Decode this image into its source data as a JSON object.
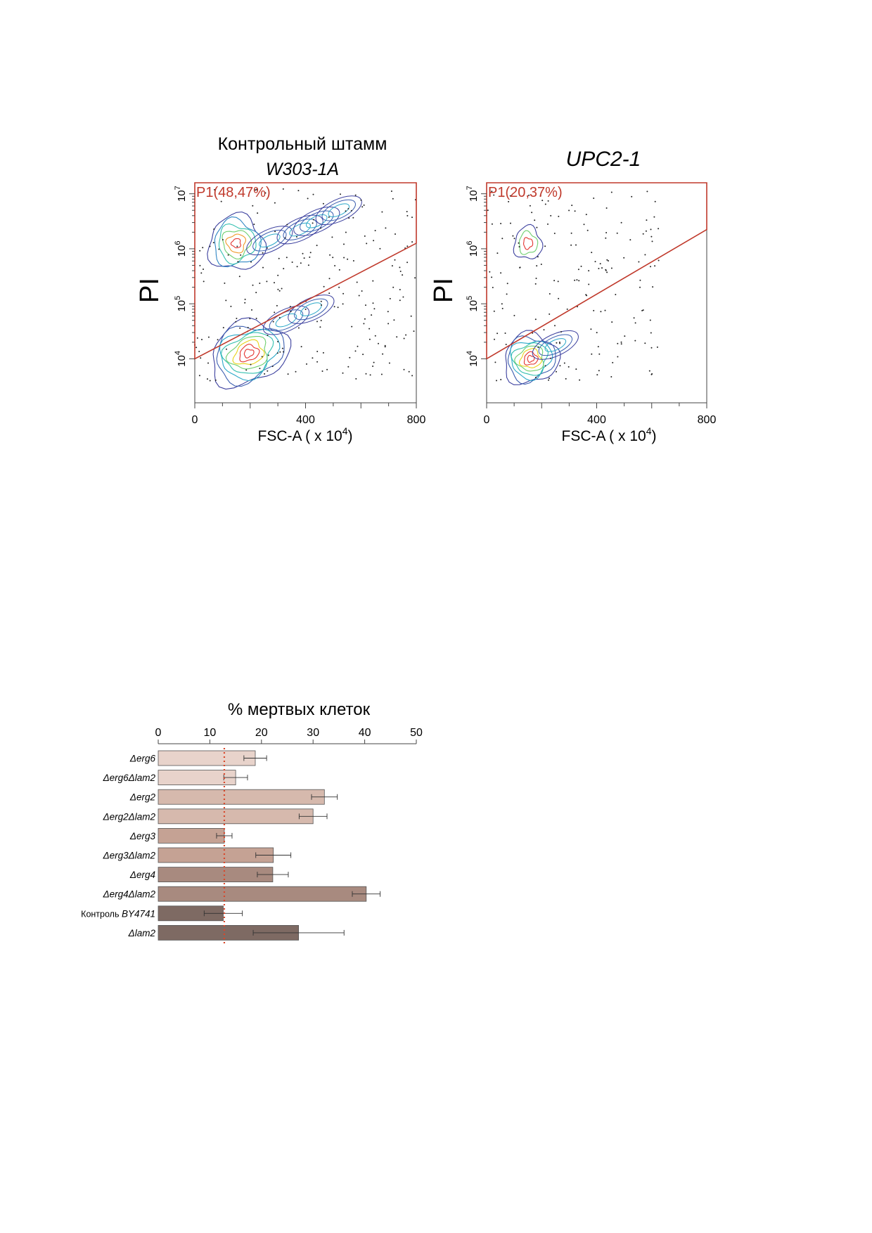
{
  "colors": {
    "gate": "#c0392b",
    "contour_outer": "#3b3f9e",
    "contour_mid": "#2aa8c8",
    "contour_inner": "#e8d21a",
    "contour_core": "#e3342f",
    "baseline": "#d9472b",
    "bar_edge": "#555555",
    "error_bar": "#333333"
  },
  "chart_data": [
    {
      "type": "scatter",
      "name": "flow-control",
      "title_line1": "Контрольный штамм",
      "title_line2": "W303-1A",
      "ylabel": "PI",
      "xlabel_prefix": "FSC-A ( x 10",
      "xlabel_sup": "4",
      "xlabel_suffix": ")",
      "x_range": [
        0,
        800
      ],
      "x_ticks": [
        {
          "value": 0,
          "label": "0"
        },
        {
          "value": 400,
          "label": "400"
        },
        {
          "value": 800,
          "label": "800"
        }
      ],
      "y_log_range": [
        3.2,
        7.2
      ],
      "y_ticks": [
        {
          "exp": 4,
          "base": "10",
          "sup": "4"
        },
        {
          "exp": 5,
          "base": "10",
          "sup": "5"
        },
        {
          "exp": 6,
          "base": "10",
          "sup": "6"
        },
        {
          "exp": 7,
          "base": "10",
          "sup": "7"
        }
      ],
      "gate": {
        "label": "P1(48,47%)",
        "line": [
          [
            0,
            4.0
          ],
          [
            800,
            6.1
          ]
        ]
      },
      "populations": [
        {
          "x": 150,
          "y": 6.1,
          "rx": 100,
          "ry": 0.5,
          "rot": 0,
          "n": 6,
          "tail": [
            [
              270,
              6.15
            ],
            [
              380,
              6.35
            ],
            [
              440,
              6.5
            ],
            [
              520,
              6.7
            ]
          ]
        },
        {
          "x": 195,
          "y": 4.1,
          "rx": 145,
          "ry": 0.55,
          "rot": -25,
          "n": 8,
          "tail": [
            [
              330,
              4.7
            ],
            [
              420,
              4.9
            ]
          ]
        }
      ],
      "dots": 230,
      "seed": 11
    },
    {
      "type": "scatter",
      "name": "flow-upc2",
      "title_line1": "",
      "title_line2": "UPC2-1",
      "ylabel": "PI",
      "xlabel_prefix": "FSC-A ( x 10",
      "xlabel_sup": "4",
      "xlabel_suffix": ")",
      "x_range": [
        0,
        800
      ],
      "x_ticks": [
        {
          "value": 0,
          "label": "0"
        },
        {
          "value": 400,
          "label": "400"
        },
        {
          "value": 800,
          "label": "800"
        }
      ],
      "y_log_range": [
        3.2,
        7.2
      ],
      "y_ticks": [
        {
          "exp": 4,
          "base": "10",
          "sup": "4"
        },
        {
          "exp": 5,
          "base": "10",
          "sup": "5"
        },
        {
          "exp": 6,
          "base": "10",
          "sup": "6"
        },
        {
          "exp": 7,
          "base": "10",
          "sup": "7"
        }
      ],
      "gate": {
        "label": "P1(20,37%)",
        "line": [
          [
            0,
            4.0
          ],
          [
            800,
            6.35
          ]
        ]
      },
      "populations": [
        {
          "x": 150,
          "y": 6.1,
          "rx": 50,
          "ry": 0.3,
          "rot": 0,
          "n": 3,
          "tail": []
        },
        {
          "x": 160,
          "y": 4.0,
          "rx": 100,
          "ry": 0.45,
          "rot": -20,
          "n": 8,
          "tail": [
            [
              250,
              4.25
            ]
          ]
        }
      ],
      "dots": 170,
      "seed": 29
    },
    {
      "type": "bar",
      "orientation": "horizontal",
      "title": "% мертвых клеток",
      "x_range": [
        0,
        50
      ],
      "x_ticks": [
        0,
        10,
        20,
        30,
        40,
        50
      ],
      "baseline_value": 12.8,
      "bars": [
        {
          "label": "Δerg6",
          "value": 18.8,
          "err": 2.2,
          "color": "#e8d3cb"
        },
        {
          "label": "Δerg6Δlam2",
          "value": 15.0,
          "err": 2.3,
          "color": "#e8d3cb"
        },
        {
          "label": "Δerg2",
          "value": 32.2,
          "err": 2.5,
          "color": "#d6b9ad"
        },
        {
          "label": "Δerg2Δlam2",
          "value": 30.0,
          "err": 2.7,
          "color": "#d6b9ad"
        },
        {
          "label": "Δerg3",
          "value": 12.8,
          "err": 1.5,
          "color": "#c5a294"
        },
        {
          "label": "Δerg3Δlam2",
          "value": 22.3,
          "err": 3.4,
          "color": "#c5a294"
        },
        {
          "label": "Δerg4",
          "value": 22.2,
          "err": 3.0,
          "color": "#a88a7f"
        },
        {
          "label": "Δerg4Δlam2",
          "value": 40.3,
          "err": 2.7,
          "color": "#a88a7f"
        },
        {
          "label_prefix": "Контроль",
          "label": "BY4741",
          "value": 12.6,
          "err": 3.7,
          "color": "#7e6a63"
        },
        {
          "label": "Δlam2",
          "value": 27.2,
          "err": 8.8,
          "color": "#7e6a63"
        }
      ]
    }
  ]
}
